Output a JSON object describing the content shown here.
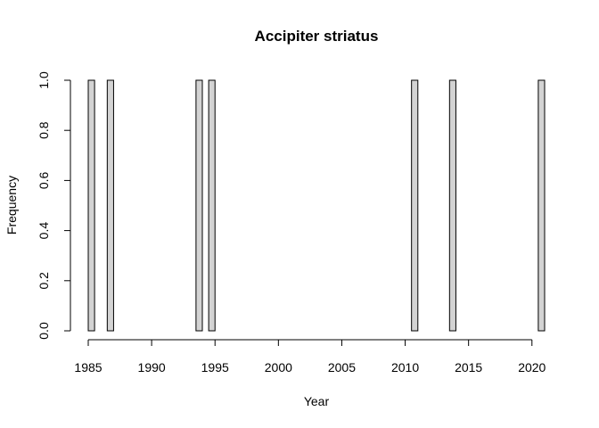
{
  "chart_data": {
    "type": "bar",
    "title": "Accipiter striatus",
    "xlabel": "Year",
    "ylabel": "Frequency",
    "bin_width": 0.5,
    "xlim": [
      1985,
      2021
    ],
    "ylim": [
      0,
      1
    ],
    "x_ticks": [
      "1985",
      "1990",
      "1995",
      "2000",
      "2005",
      "2010",
      "2015",
      "2020"
    ],
    "y_ticks": [
      "0.0",
      "0.2",
      "0.4",
      "0.6",
      "0.8",
      "1.0"
    ],
    "bins": [
      {
        "start": 1985.0,
        "end": 1985.5,
        "value": 1
      },
      {
        "start": 1986.5,
        "end": 1987.0,
        "value": 1
      },
      {
        "start": 1993.5,
        "end": 1994.0,
        "value": 1
      },
      {
        "start": 1994.5,
        "end": 1995.0,
        "value": 1
      },
      {
        "start": 2010.5,
        "end": 2011.0,
        "value": 1
      },
      {
        "start": 2013.5,
        "end": 2014.0,
        "value": 1
      },
      {
        "start": 2020.5,
        "end": 2021.0,
        "value": 1
      }
    ],
    "bar_fill": "#d3d3d3",
    "bar_stroke": "#000000",
    "grid": false,
    "legend": "none"
  }
}
